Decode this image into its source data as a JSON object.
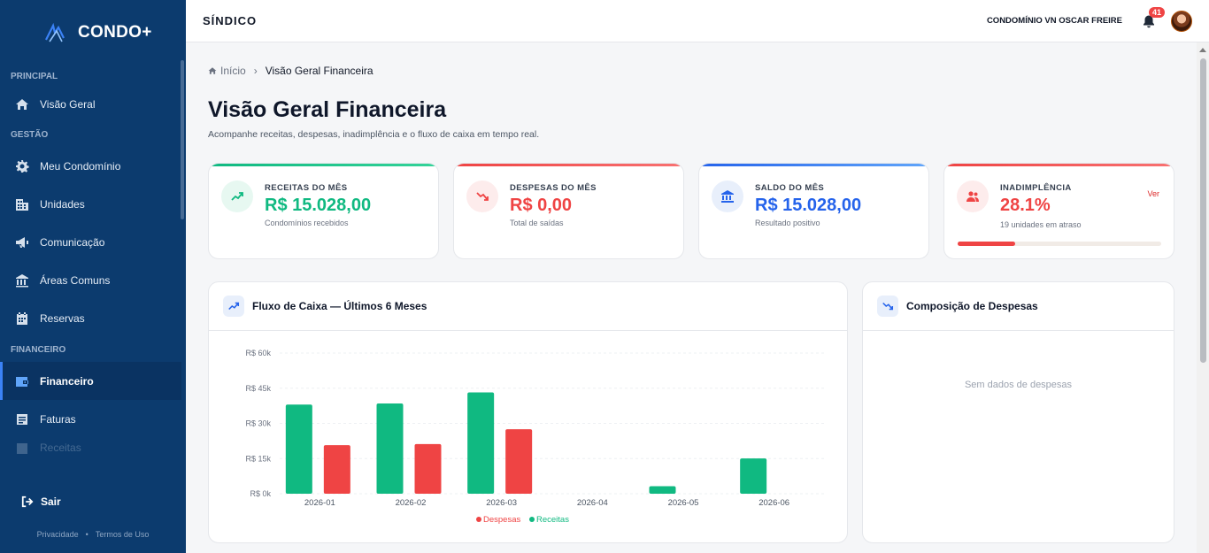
{
  "brand": {
    "name": "CONDO+"
  },
  "sidebar": {
    "sections": [
      {
        "label": "PRINCIPAL"
      },
      {
        "label": "GESTÃO"
      },
      {
        "label": "FINANCEIRO"
      }
    ],
    "items": [
      {
        "label": "Visão Geral",
        "icon": "home-icon"
      },
      {
        "label": "Meu Condomínio",
        "icon": "gear-icon"
      },
      {
        "label": "Unidades",
        "icon": "building-icon"
      },
      {
        "label": "Comunicação",
        "icon": "megaphone-icon"
      },
      {
        "label": "Áreas Comuns",
        "icon": "landmark-icon"
      },
      {
        "label": "Reservas",
        "icon": "calendar-icon"
      },
      {
        "label": "Financeiro",
        "icon": "wallet-icon",
        "active": true
      },
      {
        "label": "Faturas",
        "icon": "invoice-icon"
      },
      {
        "label": "Receitas",
        "icon": "receipt-icon"
      }
    ],
    "logout": "Sair",
    "footer": {
      "privacy": "Privacidade",
      "separator": "•",
      "terms": "Termos de Uso"
    }
  },
  "topbar": {
    "role": "SÍNDICO",
    "condominium": "CONDOMÍNIO VN OSCAR FREIRE",
    "notifications": "41"
  },
  "breadcrumb": {
    "home": "Início",
    "separator": "›",
    "current": "Visão Geral Financeira"
  },
  "page": {
    "title": "Visão Geral Financeira",
    "subtitle": "Acompanhe receitas, despesas, inadimplência e o fluxo de caixa em tempo real."
  },
  "cards": {
    "receitas": {
      "label": "RECEITAS DO MÊS",
      "value": "R$ 15.028,00",
      "sub": "Condomínios recebidos",
      "color": "#10b981"
    },
    "despesas": {
      "label": "DESPESAS DO MÊS",
      "value": "R$ 0,00",
      "sub": "Total de saídas",
      "color": "#ef4444"
    },
    "saldo": {
      "label": "SALDO DO MÊS",
      "value": "R$ 15.028,00",
      "sub": "Resultado positivo",
      "color": "#2563eb"
    },
    "inadimplencia": {
      "label": "INADIMPLÊNCIA",
      "value": "28.1%",
      "sub": "19 unidades em atraso",
      "link": "Ver",
      "progress": 0.281,
      "color": "#ef4444"
    }
  },
  "cashflow": {
    "title": "Fluxo de Caixa — Últimos 6 Meses"
  },
  "composition": {
    "title": "Composição de Despesas",
    "empty": "Sem dados de despesas"
  },
  "chart_data": {
    "type": "bar",
    "categories": [
      "2026-01",
      "2026-02",
      "2026-03",
      "2026-04",
      "2026-05",
      "2026-06"
    ],
    "series": [
      {
        "name": "Receitas",
        "color": "#10b981",
        "values": [
          38000,
          38500,
          43200,
          0,
          3200,
          15028
        ]
      },
      {
        "name": "Despesas",
        "color": "#ef4444",
        "values": [
          20700,
          21200,
          27500,
          0,
          0,
          0
        ]
      }
    ],
    "yticks": [
      "R$ 0k",
      "R$ 15k",
      "R$ 30k",
      "R$ 45k",
      "R$ 60k"
    ],
    "ylim": [
      0,
      60000
    ],
    "grid": true,
    "legend": [
      {
        "name": "Despesas",
        "color": "#ef4444"
      },
      {
        "name": "Receitas",
        "color": "#10b981"
      }
    ],
    "legend_position": "bottom"
  }
}
